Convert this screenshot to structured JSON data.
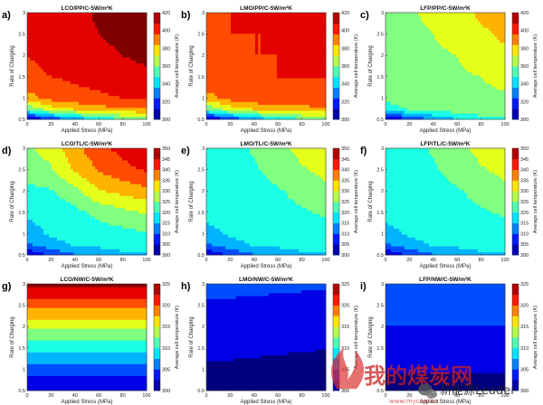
{
  "watermark": {
    "big_text": "我的煤炭网",
    "small_text": "新能源Leader",
    "url_text": "www.mycoal.cn"
  },
  "chart_data": [
    {
      "letter": "a)",
      "title": "LCO/PP/C-5W/m²K",
      "type": "contour",
      "xlabel": "Applied Stress (MPa)",
      "ylabel": "Rate of Charging",
      "cbar_label": "Average cell temperature (K)",
      "xlim": [
        0,
        100
      ],
      "ylim": [
        0.5,
        3
      ],
      "xticks": [
        0,
        20,
        40,
        60,
        80,
        100
      ],
      "yticks": [
        0.5,
        1,
        1.5,
        2,
        2.5,
        3
      ],
      "cbar_range": [
        300,
        420
      ],
      "cbar_ticks": [
        300,
        320,
        340,
        360,
        380,
        400,
        420
      ],
      "x": [
        0,
        20,
        40,
        60,
        80,
        100
      ],
      "y": [
        0.5,
        0.75,
        1,
        1.5,
        2,
        2.5,
        3
      ],
      "z": [
        [
          302,
          318,
          332,
          342,
          352,
          354
        ],
        [
          356,
          372,
          380,
          386,
          388,
          390
        ],
        [
          385,
          394,
          398,
          400,
          402,
          404
        ],
        [
          400,
          402,
          404,
          406,
          410,
          412
        ],
        [
          402,
          404,
          406,
          410,
          414,
          416
        ],
        [
          404,
          406,
          408,
          414,
          418,
          420
        ],
        [
          406,
          408,
          410,
          416,
          420,
          422
        ]
      ]
    },
    {
      "letter": "b)",
      "title": "LMO/PP/C-5W/m²K",
      "type": "contour",
      "xlabel": "Applied Stress (MPa)",
      "ylabel": "Rate of Charging",
      "cbar_label": "Average cell temperature (K)",
      "xlim": [
        0,
        100
      ],
      "ylim": [
        0.5,
        3
      ],
      "xticks": [
        0,
        20,
        40,
        60,
        80,
        100
      ],
      "yticks": [
        0.5,
        1,
        1.5,
        2,
        2.5,
        3
      ],
      "cbar_range": [
        300,
        420
      ],
      "cbar_ticks": [
        300,
        320,
        340,
        360,
        380,
        400,
        420
      ],
      "x": [
        0,
        20,
        40,
        60,
        80,
        100
      ],
      "y": [
        0.5,
        0.75,
        1,
        1.5,
        2,
        2.5,
        3
      ],
      "z": [
        [
          302,
          318,
          332,
          342,
          352,
          354
        ],
        [
          356,
          372,
          380,
          384,
          386,
          388
        ],
        [
          385,
          394,
          398,
          400,
          400,
          401
        ],
        [
          400,
          401,
          401,
          402,
          402,
          402
        ],
        [
          401,
          401,
          402,
          402,
          402,
          403
        ],
        [
          401,
          402,
          402,
          402,
          403,
          403
        ],
        [
          402,
          402,
          402,
          403,
          403,
          404
        ]
      ]
    },
    {
      "letter": "c)",
      "title": "LFP/PP/C-5W/m²K",
      "type": "contour",
      "xlabel": "Applied Stress (MPa)",
      "ylabel": "Rate of Charging",
      "cbar_label": "Average cell temperature (K)",
      "xlim": [
        0,
        100
      ],
      "ylim": [
        0.5,
        3
      ],
      "xticks": [
        0,
        20,
        40,
        60,
        80,
        100
      ],
      "yticks": [
        0.5,
        1,
        1.5,
        2,
        2.5,
        3
      ],
      "cbar_range": [
        300,
        420
      ],
      "cbar_ticks": [
        300,
        320,
        340,
        360,
        380,
        400,
        420
      ],
      "x": [
        0,
        20,
        40,
        60,
        80,
        100
      ],
      "y": [
        0.5,
        0.75,
        1,
        1.5,
        2,
        2.5,
        3
      ],
      "z": [
        [
          302,
          318,
          330,
          340,
          350,
          352
        ],
        [
          346,
          356,
          360,
          362,
          362,
          362
        ],
        [
          358,
          362,
          363,
          363,
          363,
          364
        ],
        [
          362,
          363,
          363,
          364,
          366,
          370
        ],
        [
          362,
          363,
          364,
          366,
          372,
          376
        ],
        [
          363,
          364,
          366,
          370,
          376,
          380
        ],
        [
          363,
          365,
          368,
          374,
          380,
          384
        ]
      ]
    },
    {
      "letter": "d)",
      "title": "LCO/TL/C-5W/m²K",
      "type": "contour",
      "xlabel": "Applied Stress (MPa)",
      "ylabel": "Rate of Charging",
      "cbar_label": "Average cell temperature (K)",
      "xlim": [
        0,
        100
      ],
      "ylim": [
        0.5,
        3
      ],
      "xticks": [
        0,
        20,
        40,
        60,
        80,
        100
      ],
      "yticks": [
        0.5,
        1,
        1.5,
        2,
        2.5,
        3
      ],
      "cbar_range": [
        300,
        350
      ],
      "cbar_ticks": [
        300,
        305,
        310,
        315,
        320,
        325,
        330,
        335,
        340,
        345,
        350
      ],
      "x": [
        0,
        20,
        40,
        60,
        80,
        100
      ],
      "y": [
        0.5,
        0.75,
        1,
        1.5,
        2,
        2.5,
        3
      ],
      "z": [
        [
          302,
          308,
          312,
          314,
          316,
          316
        ],
        [
          312,
          316,
          318,
          319,
          320,
          320
        ],
        [
          316,
          318,
          319,
          320,
          321,
          322
        ],
        [
          318,
          319,
          321,
          324,
          326,
          328
        ],
        [
          321,
          322,
          326,
          332,
          334,
          336
        ],
        [
          325,
          327,
          333,
          338,
          341,
          343
        ],
        [
          327,
          329,
          336,
          341,
          344,
          347
        ]
      ]
    },
    {
      "letter": "e)",
      "title": "LMO/TL/C-5W/m²K",
      "type": "contour",
      "xlabel": "Applied Stress (MPa)",
      "ylabel": "Rate of Charging",
      "cbar_label": "Average cell temperature (K)",
      "xlim": [
        0,
        100
      ],
      "ylim": [
        0.5,
        3
      ],
      "xticks": [
        0,
        20,
        40,
        60,
        80,
        100
      ],
      "yticks": [
        0.5,
        1,
        1.5,
        2,
        2.5,
        3
      ],
      "cbar_range": [
        300,
        350
      ],
      "cbar_ticks": [
        300,
        305,
        310,
        315,
        320,
        325,
        330,
        335,
        340,
        345,
        350
      ],
      "x": [
        0,
        20,
        40,
        60,
        80,
        100
      ],
      "y": [
        0.5,
        0.75,
        1,
        1.5,
        2,
        2.5,
        3
      ],
      "z": [
        [
          302,
          308,
          312,
          314,
          316,
          316
        ],
        [
          312,
          316,
          318,
          319,
          320,
          320
        ],
        [
          316,
          318,
          319,
          320,
          320,
          321
        ],
        [
          319,
          320,
          320,
          321,
          322,
          323
        ],
        [
          320,
          320,
          321,
          322,
          324,
          326
        ],
        [
          320,
          321,
          322,
          324,
          327,
          329
        ],
        [
          321,
          321,
          323,
          326,
          329,
          331
        ]
      ]
    },
    {
      "letter": "f)",
      "title": "LFP/TL/C-5W/m²K",
      "type": "contour",
      "xlabel": "Applied Stress (MPa)",
      "ylabel": "Rate of Charging",
      "cbar_label": "Average cell temperature (K)",
      "xlim": [
        0,
        100
      ],
      "ylim": [
        0.5,
        3
      ],
      "xticks": [
        0,
        20,
        40,
        60,
        80,
        100
      ],
      "yticks": [
        0.5,
        1,
        1.5,
        2,
        2.5,
        3
      ],
      "cbar_range": [
        300,
        350
      ],
      "cbar_ticks": [
        300,
        305,
        310,
        315,
        320,
        325,
        330,
        335,
        340,
        345,
        350
      ],
      "x": [
        0,
        20,
        40,
        60,
        80,
        100
      ],
      "y": [
        0.5,
        0.75,
        1,
        1.5,
        2,
        2.5,
        3
      ],
      "z": [
        [
          302,
          308,
          312,
          314,
          316,
          316
        ],
        [
          312,
          316,
          318,
          319,
          320,
          320
        ],
        [
          316,
          318,
          319,
          320,
          320,
          321
        ],
        [
          319,
          320,
          320,
          321,
          322,
          323
        ],
        [
          320,
          320,
          321,
          322,
          324,
          326
        ],
        [
          320,
          321,
          322,
          324,
          327,
          329
        ],
        [
          321,
          321,
          323,
          326,
          329,
          331
        ]
      ]
    },
    {
      "letter": "g)",
      "title": "LCO/NW/C-5W/m²K",
      "type": "contour",
      "xlabel": "Applied Stress (MPa)",
      "ylabel": "Rate of Charging",
      "cbar_label": "Average cell temperature (K)",
      "xlim": [
        0,
        100
      ],
      "ylim": [
        0.5,
        3
      ],
      "xticks": [
        0,
        20,
        40,
        60,
        80,
        100
      ],
      "yticks": [
        0.5,
        1,
        1.5,
        2,
        2.5,
        3
      ],
      "cbar_range": [
        300,
        325
      ],
      "cbar_ticks": [
        300,
        305,
        310,
        315,
        320,
        325
      ],
      "x": [
        0,
        20,
        40,
        60,
        80,
        100
      ],
      "y": [
        0.5,
        0.75,
        1,
        1.5,
        2,
        2.5,
        3
      ],
      "z": [
        [
          301.5,
          301.5,
          301.5,
          301.5,
          301.5,
          301.5
        ],
        [
          303,
          303,
          303,
          303,
          303,
          303
        ],
        [
          305,
          305,
          305,
          305,
          305,
          305
        ],
        [
          309.5,
          309.5,
          309.5,
          309.5,
          309.5,
          309.5
        ],
        [
          314.5,
          314.5,
          314.5,
          314.5,
          314.5,
          314.5
        ],
        [
          319.5,
          319.5,
          319.5,
          319.5,
          319.5,
          319.5
        ],
        [
          324.5,
          324.5,
          324.5,
          324.5,
          324.5,
          324.5
        ]
      ]
    },
    {
      "letter": "h)",
      "title": "LMO/NW/C-5W/m²K",
      "type": "contour",
      "xlabel": "Applied Stress (MPa)",
      "ylabel": "Rate of Charging",
      "cbar_label": "Average cell temperature (K)",
      "xlim": [
        0,
        100
      ],
      "ylim": [
        0.5,
        3
      ],
      "xticks": [
        0,
        20,
        40,
        60,
        80,
        100
      ],
      "yticks": [
        0.5,
        1,
        1.5,
        2,
        2.5,
        3
      ],
      "cbar_range": [
        300,
        325
      ],
      "cbar_ticks": [
        300,
        305,
        310,
        315,
        320,
        325
      ],
      "x": [
        0,
        20,
        40,
        60,
        80,
        100
      ],
      "y": [
        0.5,
        0.75,
        1,
        1.5,
        2,
        2.5,
        3
      ],
      "z": [
        [
          300.2,
          300.2,
          300.1,
          300.1,
          300.0,
          300.0
        ],
        [
          300.6,
          300.5,
          300.4,
          300.3,
          300.2,
          300.1
        ],
        [
          301.0,
          300.9,
          300.8,
          300.7,
          300.6,
          300.5
        ],
        [
          301.8,
          301.7,
          301.6,
          301.5,
          301.4,
          301.3
        ],
        [
          302.6,
          302.5,
          302.4,
          302.3,
          302.2,
          302.1
        ],
        [
          303.4,
          303.4,
          303.3,
          303.2,
          303.1,
          303.0
        ],
        [
          304.4,
          304.4,
          304.3,
          304.2,
          304.1,
          304.0
        ]
      ]
    },
    {
      "letter": "i)",
      "title": "LFP/NW/C-5W/m²K",
      "type": "contour",
      "xlabel": "Applied Stress (MPa)",
      "ylabel": "Rate of Charging",
      "cbar_label": "Average cell temperature (K)",
      "xlim": [
        0,
        100
      ],
      "ylim": [
        0.5,
        3
      ],
      "xticks": [
        0,
        20,
        40,
        60,
        80,
        100
      ],
      "yticks": [
        0.5,
        1,
        1.5,
        2,
        2.5,
        3
      ],
      "cbar_range": [
        300,
        325
      ],
      "cbar_ticks": [
        300,
        305,
        310,
        315,
        320,
        325
      ],
      "x": [
        0,
        20,
        40,
        60,
        80,
        100
      ],
      "y": [
        0.5,
        0.75,
        1,
        1.5,
        2,
        2.5,
        3
      ],
      "z": [
        [
          300.3,
          300.3,
          300.3,
          300.3,
          300.3,
          300.3
        ],
        [
          300.8,
          300.8,
          300.8,
          300.8,
          300.8,
          300.8
        ],
        [
          301.4,
          301.4,
          301.4,
          301.4,
          301.4,
          301.4
        ],
        [
          302.5,
          302.5,
          302.5,
          302.5,
          302.5,
          302.5
        ],
        [
          303.6,
          303.6,
          303.6,
          303.6,
          303.6,
          303.6
        ],
        [
          304.8,
          304.8,
          304.8,
          304.8,
          304.8,
          304.8
        ],
        [
          306.0,
          306.0,
          306.0,
          306.0,
          306.0,
          306.0
        ]
      ]
    }
  ]
}
